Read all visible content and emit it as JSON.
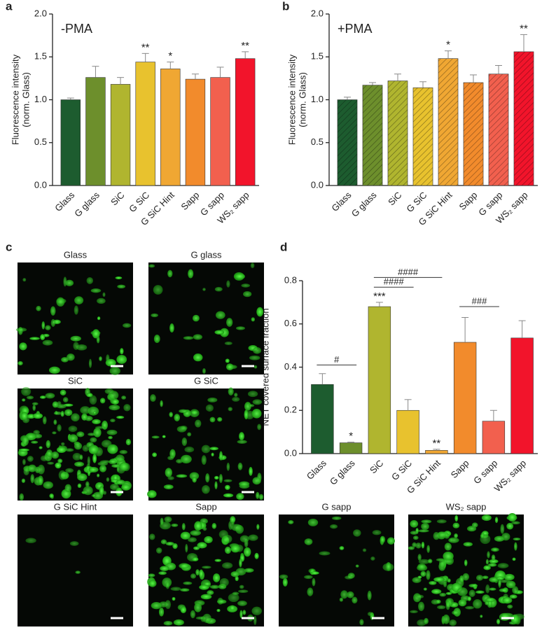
{
  "chart_data": [
    {
      "type": "bar",
      "label": "a",
      "subtitle": "-PMA",
      "ylabel": [
        "Fluorescence intensity",
        "(norm. Glass)"
      ],
      "categories": [
        "Glass",
        "G glass",
        "SiC",
        "G SiC",
        "G SiC Hint",
        "Sapp",
        "G sapp",
        "WS₂ sapp"
      ],
      "values": [
        1.0,
        1.26,
        1.18,
        1.44,
        1.36,
        1.24,
        1.26,
        1.48
      ],
      "errors": [
        0.02,
        0.13,
        0.08,
        0.1,
        0.08,
        0.06,
        0.12,
        0.08
      ],
      "annotations": [
        null,
        null,
        null,
        "**",
        "*",
        null,
        null,
        "**"
      ],
      "colors": [
        "#1d5c2f",
        "#6d8f2c",
        "#b0b52f",
        "#e8c22e",
        "#f0a733",
        "#f28b2c",
        "#f2604e",
        "#f2142b"
      ],
      "hatch": false,
      "ylim": [
        0,
        2
      ],
      "yticks": [
        {
          "value": 0,
          "label": "0.0"
        },
        0.5,
        {
          "value": 1,
          "label": "1.0"
        },
        1.5,
        {
          "value": 2,
          "label": "2.0"
        }
      ]
    },
    {
      "type": "bar",
      "label": "b",
      "subtitle": "+PMA",
      "ylabel": [
        "Fluorescence intensity",
        "(norm. Glass)"
      ],
      "categories": [
        "Glass",
        "G glass",
        "SiC",
        "G SiC",
        "G SiC Hint",
        "Sapp",
        "G sapp",
        "WS₂ sapp"
      ],
      "values": [
        1.0,
        1.17,
        1.22,
        1.14,
        1.48,
        1.2,
        1.3,
        1.56
      ],
      "errors": [
        0.03,
        0.03,
        0.08,
        0.07,
        0.09,
        0.09,
        0.1,
        0.2
      ],
      "annotations": [
        null,
        null,
        null,
        null,
        "*",
        null,
        null,
        "**"
      ],
      "colors": [
        "#1d5c2f",
        "#6d8f2c",
        "#b0b52f",
        "#e8c22e",
        "#f0a733",
        "#f28b2c",
        "#f2604e",
        "#f2142b"
      ],
      "hatch": true,
      "ylim": [
        0,
        2
      ],
      "yticks": [
        {
          "value": 0,
          "label": "0.0"
        },
        0.5,
        {
          "value": 1,
          "label": "1.0"
        },
        1.5,
        {
          "value": 2,
          "label": "2.0"
        }
      ]
    },
    {
      "type": "bar",
      "label": "d",
      "ylabel": [
        "NET covered surface fraction"
      ],
      "categories": [
        "Glass",
        "G glass",
        "SiC",
        "G SiC",
        "G SiC Hint",
        "Sapp",
        "G sapp",
        "WS₂ sapp"
      ],
      "values": [
        0.32,
        0.05,
        0.68,
        0.2,
        0.015,
        0.515,
        0.15,
        0.535
      ],
      "errors": [
        0.05,
        0.003,
        0.02,
        0.05,
        0.005,
        0.115,
        0.05,
        0.08
      ],
      "annotations": [
        null,
        "*",
        "***",
        null,
        "**",
        null,
        null,
        null
      ],
      "brackets": [
        {
          "from": 0,
          "to": 1,
          "y": 0.41,
          "label": "#"
        },
        {
          "from": 2,
          "to": 3,
          "y": 0.77,
          "label": "####"
        },
        {
          "from": 2,
          "to": 4,
          "y": 0.815,
          "label": "####"
        },
        {
          "from": 5,
          "to": 6,
          "y": 0.68,
          "label": "###"
        }
      ],
      "colors": [
        "#1d5c2f",
        "#6d8f2c",
        "#b0b52f",
        "#e8c22e",
        "#f0a733",
        "#f28b2c",
        "#f2604e",
        "#f2142b"
      ],
      "hatch": false,
      "ylim": [
        0,
        0.8
      ],
      "yticks": [
        {
          "value": 0,
          "label": "0.0"
        },
        0.2,
        0.4,
        0.6,
        0.8
      ]
    }
  ],
  "panel_c": {
    "label": "c",
    "images": [
      "Glass",
      "G glass",
      "SiC",
      "G SiC",
      "G SiC Hint",
      "Sapp",
      "G sapp",
      "WS₂ sapp"
    ]
  }
}
